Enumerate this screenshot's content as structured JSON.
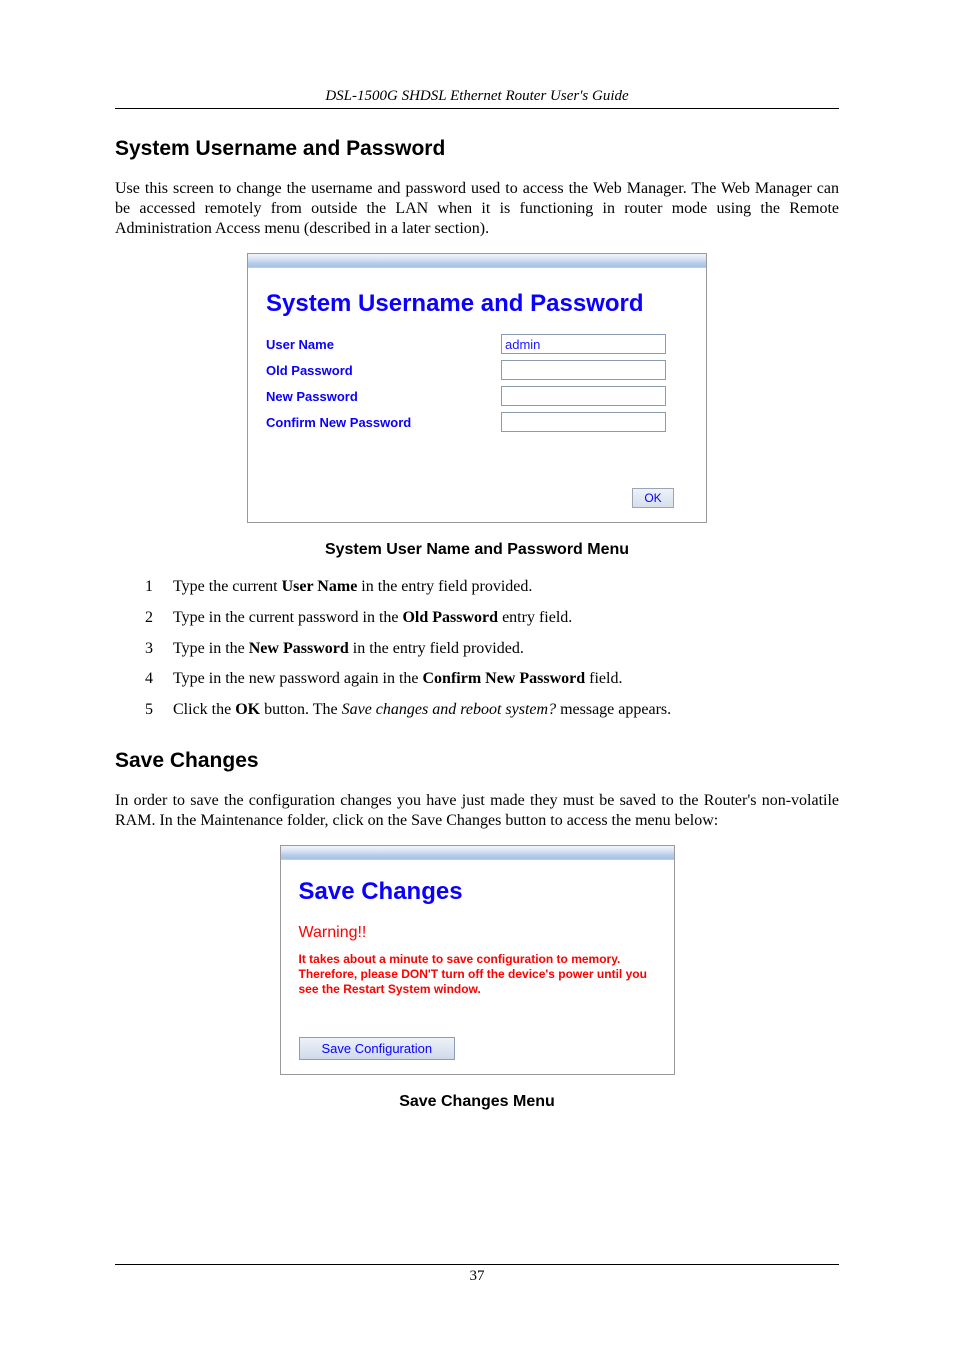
{
  "header": {
    "title": "DSL-1500G SHDSL Ethernet Router User's Guide"
  },
  "section1": {
    "heading": "System Username and Password",
    "intro": "Use this screen to change the username and password used to access the Web Manager. The Web Manager can be accessed remotely from outside the LAN when it is functioning in router mode using the Remote Administration Access menu (described in a later section)."
  },
  "shot1": {
    "title": "System Username and Password",
    "labels": {
      "user_name": "User Name",
      "old_password": "Old Password",
      "new_password": "New Password",
      "confirm_password": "Confirm New Password"
    },
    "values": {
      "user_name": "admin",
      "old_password": "",
      "new_password": "",
      "confirm_password": ""
    },
    "ok_label": "OK",
    "caption": "System User Name and Password Menu",
    "colors": {
      "title_color": "#0a00ff",
      "label_color": "#0a00ff",
      "border_color": "#999999",
      "input_border_color": "#8c9bb0",
      "button_text_color": "#0a00ff",
      "topbar_gradient": [
        "#f1f5fb",
        "#d8e3f3",
        "#b7cdea",
        "#a7c1e6"
      ]
    },
    "typography": {
      "title_fontsize": 24,
      "label_fontsize": 13,
      "button_fontsize": 12,
      "font_family": "Arial"
    }
  },
  "steps": [
    {
      "n": "1",
      "pre": "Type the current ",
      "bold": "User Name",
      "post": " in the entry field provided."
    },
    {
      "n": "2",
      "pre": "Type in the current password in the ",
      "bold": "Old Password",
      "post": " entry field."
    },
    {
      "n": "3",
      "pre": "Type in the ",
      "bold": "New Password",
      "post": " in the entry field provided."
    },
    {
      "n": "4",
      "pre": "Type in the new password again in the ",
      "bold": "Confirm New Password",
      "post": " field."
    },
    {
      "n": "5",
      "pre": "Click the ",
      "bold": "OK",
      "post": " button. The ",
      "ital": "Save changes and reboot system?",
      "post2": " message appears."
    }
  ],
  "section2": {
    "heading": "Save Changes",
    "intro": "In order to save the configuration changes you have just made they must be saved to the Router's non-volatile RAM. In the Maintenance folder, click on the Save Changes button to access the menu below:"
  },
  "shot2": {
    "title": "Save Changes",
    "warning_title": "Warning!!",
    "warning_body": "It takes about a minute to save configuration to memory. Therefore, please DON'T turn off the device's power until you see the Restart System window.",
    "button_label": "Save Configuration",
    "caption": "Save Changes Menu",
    "colors": {
      "title_color": "#0a00ff",
      "warning_color": "#ff0000",
      "button_text_color": "#0a00ff",
      "border_color": "#999999"
    },
    "typography": {
      "title_fontsize": 24,
      "warning_title_fontsize": 16,
      "warning_body_fontsize": 12,
      "button_fontsize": 13,
      "font_family": "Arial"
    }
  },
  "footer": {
    "page_number": "37"
  }
}
